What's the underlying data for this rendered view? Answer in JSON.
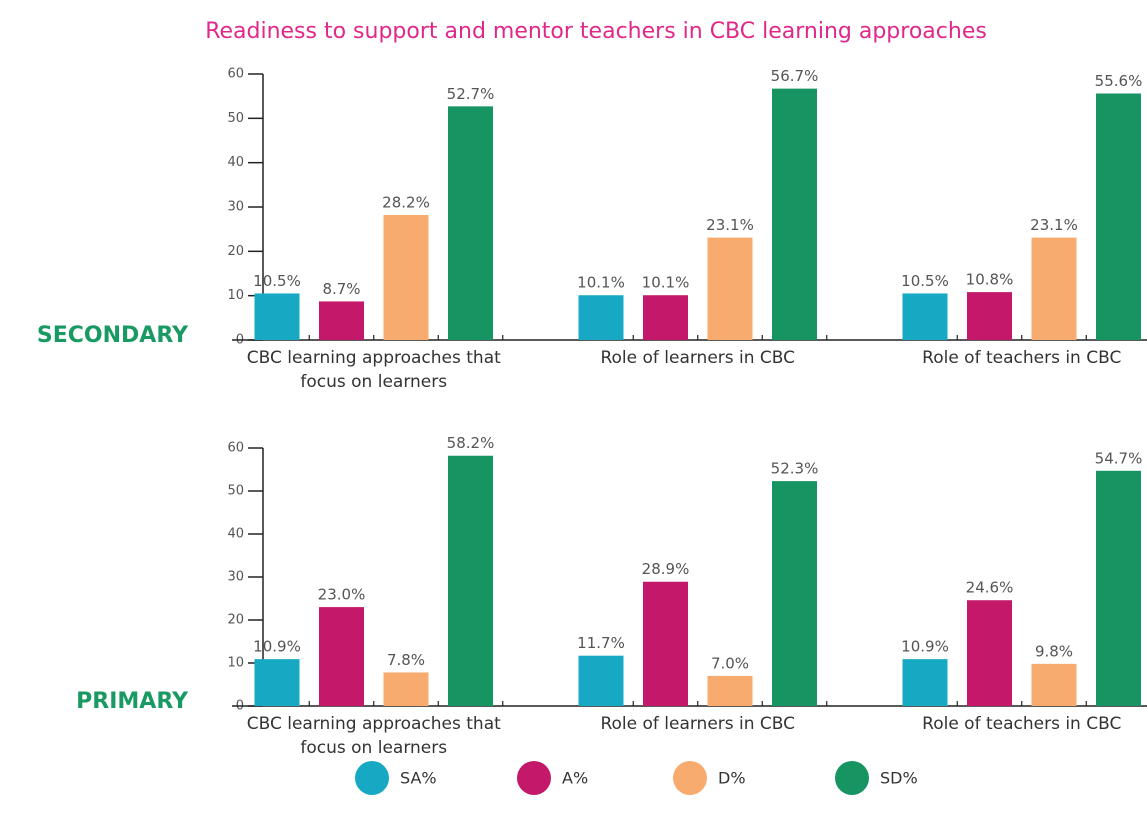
{
  "title": "Readiness to support and mentor teachers in CBC learning approaches",
  "chart_data": [
    {
      "type": "bar",
      "label": "SECONDARY",
      "categories": [
        "CBC learning approaches that focus on learners",
        "Role of learners in CBC",
        "Role of teachers in CBC"
      ],
      "series": [
        {
          "name": "SA%",
          "color": "#17a9c3",
          "values": [
            10.5,
            10.1,
            10.5
          ],
          "value_labels": [
            "10.5%",
            "10.1%",
            "10.5%"
          ]
        },
        {
          "name": "A%",
          "color": "#c4186a",
          "values": [
            8.7,
            10.1,
            10.8
          ],
          "value_labels": [
            "8.7%",
            "10.1%",
            "10.8%"
          ]
        },
        {
          "name": "D%",
          "color": "#f7ab6e",
          "values": [
            28.2,
            23.1,
            23.1
          ],
          "value_labels": [
            "28.2%",
            "23.1%",
            "23.1%"
          ]
        },
        {
          "name": "SD%",
          "color": "#169462",
          "values": [
            52.7,
            56.7,
            55.6
          ],
          "value_labels": [
            "52.7%",
            "56.7%",
            "55.6%"
          ]
        }
      ],
      "ylim": [
        0,
        60
      ],
      "yticks": [
        0,
        10,
        20,
        30,
        40,
        50,
        60
      ]
    },
    {
      "type": "bar",
      "label": "PRIMARY",
      "categories": [
        "CBC learning approaches that focus on learners",
        "Role of learners in CBC",
        "Role of teachers in CBC"
      ],
      "series": [
        {
          "name": "SA%",
          "color": "#17a9c3",
          "values": [
            10.9,
            11.7,
            10.9
          ],
          "value_labels": [
            "10.9%",
            "11.7%",
            "10.9%"
          ]
        },
        {
          "name": "A%",
          "color": "#c4186a",
          "values": [
            23.0,
            28.9,
            24.6
          ],
          "value_labels": [
            "23.0%",
            "28.9%",
            "24.6%"
          ]
        },
        {
          "name": "D%",
          "color": "#f7ab6e",
          "values": [
            7.8,
            7.0,
            9.8
          ],
          "value_labels": [
            "7.8%",
            "7.0%",
            "9.8%"
          ]
        },
        {
          "name": "SD%",
          "color": "#169462",
          "values": [
            58.2,
            52.3,
            54.7
          ],
          "value_labels": [
            "58.2%",
            "52.3%",
            "54.7%"
          ]
        }
      ],
      "ylim": [
        0,
        60
      ],
      "yticks": [
        0,
        10,
        20,
        30,
        40,
        50,
        60
      ]
    }
  ]
}
